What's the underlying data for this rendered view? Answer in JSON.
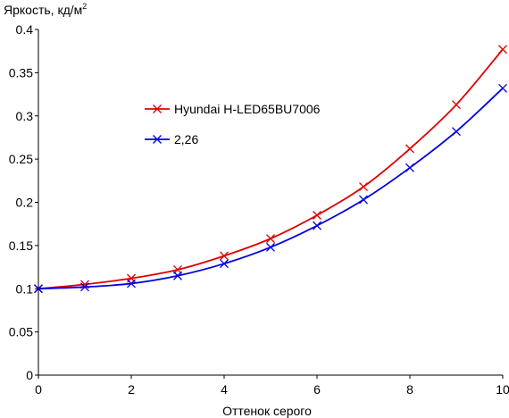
{
  "chart_data": {
    "type": "line",
    "title": "",
    "ylabel": "Яркость, кд/м",
    "ylabel_sup": "2",
    "xlabel": "Оттенок серого",
    "xlim": [
      0,
      10
    ],
    "ylim": [
      0,
      0.4
    ],
    "x_ticks": [
      "0",
      "2",
      "4",
      "6",
      "8",
      "10"
    ],
    "y_ticks": [
      "0",
      "0.05",
      "0.1",
      "0.15",
      "0.2",
      "0.25",
      "0.3",
      "0.35",
      "0.4"
    ],
    "grid": false,
    "legend_position": "upper-left-inside",
    "x": [
      0,
      1,
      2,
      3,
      4,
      5,
      6,
      7,
      8,
      9,
      10
    ],
    "series": [
      {
        "name": "Hyundai H-LED65BU7006",
        "color": "#e00000",
        "marker": "x",
        "values": [
          0.1,
          0.105,
          0.112,
          0.122,
          0.138,
          0.158,
          0.185,
          0.218,
          0.262,
          0.313,
          0.377
        ]
      },
      {
        "name": "2,26",
        "color": "#0000e0",
        "marker": "x",
        "values": [
          0.1,
          0.102,
          0.106,
          0.115,
          0.129,
          0.148,
          0.173,
          0.203,
          0.24,
          0.282,
          0.332
        ]
      }
    ]
  }
}
